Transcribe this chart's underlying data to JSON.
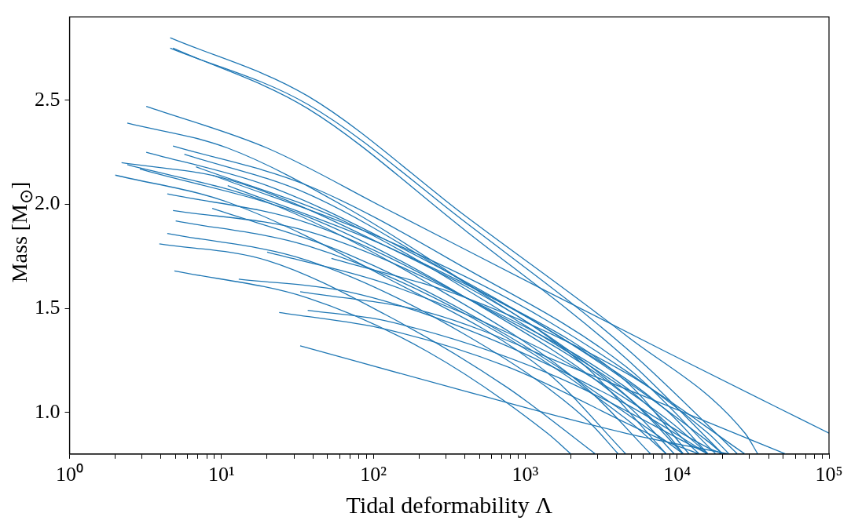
{
  "chart_data": {
    "type": "line",
    "xlabel": "Tidal deformability Λ",
    "ylabel": "Mass [M$_{⊙}$]",
    "log": "x",
    "grid": false,
    "legend": false,
    "marker": "none",
    "line_style": "solid",
    "xlim": [
      1,
      100000
    ],
    "ylim": [
      0.8,
      2.9
    ],
    "xticks": [
      {
        "value": 1,
        "label": "10⁰"
      },
      {
        "value": 2,
        "label": null
      },
      {
        "value": 3,
        "label": null
      },
      {
        "value": 4,
        "label": null
      },
      {
        "value": 5,
        "label": null
      },
      {
        "value": 6,
        "label": null
      },
      {
        "value": 7,
        "label": null
      },
      {
        "value": 8,
        "label": null
      },
      {
        "value": 9,
        "label": null
      },
      {
        "value": 10,
        "label": "10¹"
      },
      {
        "value": 20,
        "label": null
      },
      {
        "value": 30,
        "label": null
      },
      {
        "value": 40,
        "label": null
      },
      {
        "value": 50,
        "label": null
      },
      {
        "value": 60,
        "label": null
      },
      {
        "value": 70,
        "label": null
      },
      {
        "value": 80,
        "label": null
      },
      {
        "value": 90,
        "label": null
      },
      {
        "value": 100,
        "label": "10²"
      },
      {
        "value": 200,
        "label": null
      },
      {
        "value": 300,
        "label": null
      },
      {
        "value": 400,
        "label": null
      },
      {
        "value": 500,
        "label": null
      },
      {
        "value": 600,
        "label": null
      },
      {
        "value": 700,
        "label": null
      },
      {
        "value": 800,
        "label": null
      },
      {
        "value": 900,
        "label": null
      },
      {
        "value": 1000,
        "label": "10³"
      },
      {
        "value": 2000,
        "label": null
      },
      {
        "value": 3000,
        "label": null
      },
      {
        "value": 4000,
        "label": null
      },
      {
        "value": 5000,
        "label": null
      },
      {
        "value": 6000,
        "label": null
      },
      {
        "value": 7000,
        "label": null
      },
      {
        "value": 8000,
        "label": null
      },
      {
        "value": 9000,
        "label": null
      },
      {
        "value": 10000,
        "label": "10⁴"
      },
      {
        "value": 20000,
        "label": null
      },
      {
        "value": 30000,
        "label": null
      },
      {
        "value": 40000,
        "label": null
      },
      {
        "value": 50000,
        "label": null
      },
      {
        "value": 60000,
        "label": null
      },
      {
        "value": 70000,
        "label": null
      },
      {
        "value": 80000,
        "label": null
      },
      {
        "value": 90000,
        "label": null
      },
      {
        "value": 100000,
        "label": "10⁵"
      }
    ],
    "yticks": [
      {
        "value": 1,
        "label": "1.0"
      },
      1.5,
      {
        "value": 2,
        "label": "2.0"
      },
      2.5
    ],
    "series": [
      {
        "color": "#1f77b4",
        "x": [
          4.6,
          37,
          410,
          4600,
          28000,
          34000
        ],
        "values": [
          2.8,
          2.52,
          1.94,
          1.37,
          0.9,
          0.8
        ]
      },
      {
        "color": "#1f77b4",
        "x": [
          4.6,
          37,
          410,
          4600,
          25000
        ],
        "values": [
          2.75,
          2.48,
          1.91,
          1.31,
          0.8
        ]
      },
      {
        "color": "#1f77b4",
        "x": [
          4.8,
          37,
          410,
          4600,
          20000
        ],
        "values": [
          2.75,
          2.46,
          1.87,
          1.26,
          0.8
        ]
      },
      {
        "color": "#1f77b4",
        "x": [
          3.2,
          20,
          120,
          1400,
          8500,
          100000
        ],
        "values": [
          2.47,
          2.27,
          1.98,
          1.58,
          1.29,
          0.9
        ]
      },
      {
        "color": "#1f77b4",
        "x": [
          2.4,
          11,
          68,
          410,
          2500,
          8500
        ],
        "values": [
          2.39,
          2.27,
          1.98,
          1.62,
          1.22,
          0.8
        ]
      },
      {
        "color": "#1f77b4",
        "x": [
          3.2,
          20,
          120,
          1400,
          8500,
          16000
        ],
        "values": [
          2.25,
          2.09,
          1.83,
          1.4,
          1.01,
          0.8
        ]
      },
      {
        "color": "#1f77b4",
        "x": [
          4.8,
          37,
          410,
          4600,
          18000
        ],
        "values": [
          2.28,
          2.09,
          1.69,
          1.22,
          0.8
        ]
      },
      {
        "color": "#1f77b4",
        "x": [
          5.7,
          37,
          410,
          4600,
          12000
        ],
        "values": [
          2.24,
          2.05,
          1.62,
          1.15,
          0.8
        ]
      },
      {
        "color": "#1f77b4",
        "x": [
          2.2,
          11,
          120,
          1400,
          8500,
          11000
        ],
        "values": [
          2.2,
          2.12,
          1.8,
          1.37,
          0.9,
          0.8
        ]
      },
      {
        "color": "#1f77b4",
        "x": [
          2.4,
          20,
          230,
          2500,
          6700
        ],
        "values": [
          2.19,
          2.01,
          1.62,
          1.12,
          0.8
        ]
      },
      {
        "color": "#1f77b4",
        "x": [
          2.0,
          11,
          120,
          1400,
          4600
        ],
        "values": [
          2.14,
          2.01,
          1.65,
          1.19,
          0.8
        ]
      },
      {
        "color": "#1f77b4",
        "x": [
          2.9,
          37,
          410,
          4600,
          9600
        ],
        "values": [
          2.17,
          1.94,
          1.55,
          1.04,
          0.8
        ]
      },
      {
        "color": "#1f77b4",
        "x": [
          4.4,
          37,
          410,
          4600,
          11000
        ],
        "values": [
          2.05,
          1.91,
          1.55,
          1.08,
          0.8
        ]
      },
      {
        "color": "#1f77b4",
        "x": [
          4.8,
          37,
          410,
          4600,
          14000
        ],
        "values": [
          1.97,
          1.87,
          1.55,
          1.12,
          0.8
        ]
      },
      {
        "color": "#1f77b4",
        "x": [
          5.0,
          37,
          410,
          4600,
          8500
        ],
        "values": [
          1.92,
          1.8,
          1.47,
          0.97,
          0.8
        ]
      },
      {
        "color": "#1f77b4",
        "x": [
          4.4,
          37,
          410,
          2500,
          4100
        ],
        "values": [
          1.86,
          1.73,
          1.37,
          0.97,
          0.8
        ]
      },
      {
        "color": "#1f77b4",
        "x": [
          3.9,
          20,
          120,
          760,
          2900
        ],
        "values": [
          1.81,
          1.73,
          1.47,
          1.12,
          0.8
        ]
      },
      {
        "color": "#1f77b4",
        "x": [
          4.9,
          37,
          230,
          1400,
          2000
        ],
        "values": [
          1.68,
          1.55,
          1.29,
          0.9,
          0.8
        ]
      },
      {
        "color": "#1f77b4",
        "x": [
          13,
          68,
          410,
          4600,
          16000
        ],
        "values": [
          1.64,
          1.58,
          1.4,
          1.04,
          0.8
        ]
      },
      {
        "color": "#1f77b4",
        "x": [
          24,
          120,
          760,
          8500,
          14000
        ],
        "values": [
          1.48,
          1.4,
          1.22,
          0.86,
          0.8
        ]
      },
      {
        "color": "#1f77b4",
        "x": [
          37,
          120,
          1400,
          16000
        ],
        "values": [
          1.49,
          1.44,
          1.19,
          0.8
        ]
      },
      {
        "color": "#1f77b4",
        "x": [
          33,
          410,
          4600,
          22000
        ],
        "values": [
          1.32,
          1.1,
          0.9,
          0.8
        ]
      },
      {
        "color": "#1f77b4",
        "x": [
          20,
          120,
          1400,
          16000,
          20000
        ],
        "values": [
          1.77,
          1.62,
          1.29,
          0.83,
          0.8
        ]
      },
      {
        "color": "#1f77b4",
        "x": [
          53,
          410,
          4600,
          28000
        ],
        "values": [
          1.74,
          1.55,
          1.19,
          0.8
        ]
      },
      {
        "color": "#1f77b4",
        "x": [
          33,
          230,
          2500,
          52000
        ],
        "values": [
          1.58,
          1.48,
          1.19,
          0.8
        ]
      },
      {
        "color": "#1f77b4",
        "x": [
          6.8,
          68,
          760,
          8500,
          16000
        ],
        "values": [
          2.18,
          1.91,
          1.47,
          0.97,
          0.8
        ]
      },
      {
        "color": "#1f77b4",
        "x": [
          8.7,
          120,
          1400,
          16000,
          22000
        ],
        "values": [
          2.14,
          1.83,
          1.44,
          0.9,
          0.8
        ]
      },
      {
        "color": "#1f77b4",
        "x": [
          11,
          120,
          1400,
          16000,
          20000
        ],
        "values": [
          2.09,
          1.8,
          1.4,
          0.86,
          0.8
        ]
      },
      {
        "color": "#1f77b4",
        "x": [
          8.7,
          68,
          760,
          8500,
          11000
        ],
        "values": [
          1.98,
          1.76,
          1.37,
          0.86,
          0.8
        ]
      }
    ]
  }
}
